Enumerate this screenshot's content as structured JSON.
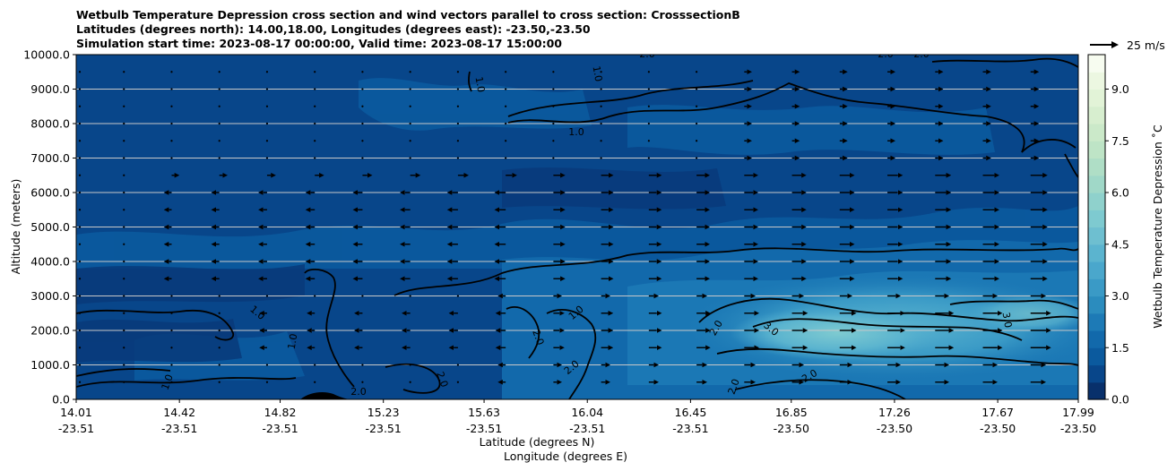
{
  "chart_data": {
    "type": "heatmap",
    "title_lines": [
      "Wetbulb Temperature Depression cross section and wind vectors parallel to cross section: CrosssectionB",
      "Latitudes (degrees north): 14.00,18.00, Longitudes (degrees east): -23.50,-23.50",
      "Simulation start time: 2023-08-17 00:00:00, Valid time: 2023-08-17 15:00:00"
    ],
    "ylabel": "Altitude (meters)",
    "xlabel": "Latitude (degrees N)",
    "xlabel2": "Longitude (degrees E)",
    "ylim": [
      0,
      10000
    ],
    "y_ticks": [
      {
        "value": 0,
        "label": "0.0"
      },
      {
        "value": 1000,
        "label": "1000.0"
      },
      {
        "value": 2000,
        "label": "2000.0"
      },
      {
        "value": 3000,
        "label": "3000.0"
      },
      {
        "value": 4000,
        "label": "4000.0"
      },
      {
        "value": 5000,
        "label": "5000.0"
      },
      {
        "value": 6000,
        "label": "6000.0"
      },
      {
        "value": 7000,
        "label": "7000.0"
      },
      {
        "value": 8000,
        "label": "8000.0"
      },
      {
        "value": 9000,
        "label": "9000.0"
      },
      {
        "value": 10000,
        "label": "10000.0"
      }
    ],
    "x_range": [
      14.01,
      17.99
    ],
    "x_ticks": [
      {
        "lat": 14.01,
        "lat_label": "14.01",
        "lon_label": "-23.51"
      },
      {
        "lat": 14.42,
        "lat_label": "14.42",
        "lon_label": "-23.51"
      },
      {
        "lat": 14.82,
        "lat_label": "14.82",
        "lon_label": "-23.51"
      },
      {
        "lat": 15.23,
        "lat_label": "15.23",
        "lon_label": "-23.51"
      },
      {
        "lat": 15.63,
        "lat_label": "15.63",
        "lon_label": "-23.51"
      },
      {
        "lat": 16.04,
        "lat_label": "16.04",
        "lon_label": "-23.51"
      },
      {
        "lat": 16.45,
        "lat_label": "16.45",
        "lon_label": "-23.51"
      },
      {
        "lat": 16.85,
        "lat_label": "16.85",
        "lon_label": "-23.50"
      },
      {
        "lat": 17.26,
        "lat_label": "17.26",
        "lon_label": "-23.50"
      },
      {
        "lat": 17.67,
        "lat_label": "17.67",
        "lon_label": "-23.50"
      },
      {
        "lat": 17.99,
        "lat_label": "17.99",
        "lon_label": "-23.50"
      }
    ],
    "colorbar": {
      "label": "Wetbulb Temperature Depression ˚C",
      "range": [
        0,
        10
      ],
      "tick_values": [
        0,
        1.5,
        3,
        4.5,
        6,
        7.5,
        9
      ],
      "tick_labels": [
        "0.0",
        "1.5",
        "3.0",
        "4.5",
        "6.0",
        "7.5",
        "9.0"
      ],
      "levels": 20,
      "colors": [
        "#08306b",
        "#08468a",
        "#0b5a9e",
        "#1269ab",
        "#1d7ab6",
        "#2b8cbe",
        "#3a9ac6",
        "#4aa7cc",
        "#5bb4cf",
        "#6ebfd0",
        "#7ecad0",
        "#8fd1cc",
        "#a0d8c8",
        "#afdec6",
        "#bee4c6",
        "#cbe9c9",
        "#d7eecf",
        "#e2f3d7",
        "#ecf7e1",
        "#f7fcf0"
      ]
    },
    "contour_levels": [
      1.0,
      2.0,
      3.0
    ],
    "contour_labels": [
      "1.0",
      "1.0",
      "1.0",
      "1.0",
      "1.0",
      "1.0",
      "1.0",
      "2.0",
      "2.0",
      "2.0",
      "2.0",
      "2.0",
      "2.0",
      "2.0",
      "2.0",
      "3.0",
      "3.0",
      "2.0",
      "2.0"
    ],
    "wind_reference": {
      "speed": 25,
      "label": "25 m/s"
    },
    "field_description": {
      "depression_regions": [
        {
          "lat_min": 14.01,
          "lat_max": 17.99,
          "alt_min": 0,
          "alt_max": 10000,
          "value": 0.7
        },
        {
          "lat_min": 16.4,
          "lat_max": 17.99,
          "alt_min": 500,
          "alt_max": 3200,
          "value": 2.2
        },
        {
          "lat_min": 16.8,
          "lat_max": 17.6,
          "alt_min": 1100,
          "alt_max": 2600,
          "value": 3.3
        }
      ]
    }
  }
}
